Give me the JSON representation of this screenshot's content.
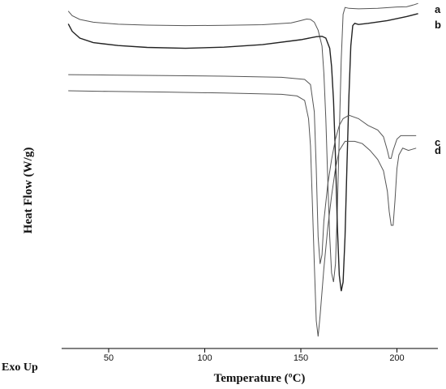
{
  "chart_data": {
    "type": "line",
    "xlabel": "Temperature (ºC)",
    "ylabel": "Heat Flow (W/g)",
    "corner_note": "Exo Up",
    "xlim": [
      27,
      212
    ],
    "x_ticks": [
      50,
      100,
      150,
      200
    ],
    "grid": false,
    "series": [
      {
        "name": "a",
        "color": "#555555",
        "points": [
          [
            29,
            -0.6
          ],
          [
            31,
            -2.6
          ],
          [
            35,
            -4.3
          ],
          [
            42,
            -5.5
          ],
          [
            55,
            -6.4
          ],
          [
            70,
            -6.8
          ],
          [
            90,
            -7.0
          ],
          [
            110,
            -6.9
          ],
          [
            130,
            -6.6
          ],
          [
            145,
            -5.8
          ],
          [
            150,
            -4.8
          ],
          [
            153,
            -4.1
          ],
          [
            155,
            -4.3
          ],
          [
            157,
            -5.5
          ],
          [
            159,
            -9
          ],
          [
            161,
            -16
          ],
          [
            162,
            -28
          ],
          [
            163,
            -48
          ],
          [
            164,
            -75
          ],
          [
            165,
            -100
          ],
          [
            166,
            -116
          ],
          [
            167,
            -120
          ],
          [
            168,
            -112
          ],
          [
            169,
            -88
          ],
          [
            170,
            -55
          ],
          [
            171,
            -22
          ],
          [
            172,
            -2
          ],
          [
            173,
            1
          ],
          [
            175,
            0.6
          ],
          [
            180,
            0.4
          ],
          [
            190,
            0.6
          ],
          [
            200,
            1.2
          ],
          [
            205,
            1.3
          ],
          [
            209,
            2.2
          ],
          [
            211,
            2.8
          ]
        ]
      },
      {
        "name": "b",
        "color": "#222222",
        "points": [
          [
            29,
            -6.2
          ],
          [
            31,
            -9.5
          ],
          [
            35,
            -12.5
          ],
          [
            42,
            -14.5
          ],
          [
            55,
            -15.8
          ],
          [
            70,
            -16.6
          ],
          [
            90,
            -17
          ],
          [
            110,
            -16.5
          ],
          [
            130,
            -15.4
          ],
          [
            150,
            -13.2
          ],
          [
            158,
            -11.9
          ],
          [
            161,
            -11.7
          ],
          [
            163,
            -12.5
          ],
          [
            165,
            -17
          ],
          [
            166,
            -25
          ],
          [
            167,
            -40
          ],
          [
            168,
            -65
          ],
          [
            169,
            -95
          ],
          [
            170,
            -117
          ],
          [
            171,
            -124
          ],
          [
            172,
            -120
          ],
          [
            173,
            -100
          ],
          [
            174,
            -68
          ],
          [
            175,
            -38
          ],
          [
            176,
            -16
          ],
          [
            177,
            -7
          ],
          [
            178,
            -6
          ],
          [
            180,
            -6.5
          ],
          [
            185,
            -6
          ],
          [
            195,
            -4.8
          ],
          [
            205,
            -3
          ],
          [
            211,
            -1.7
          ]
        ]
      },
      {
        "name": "c",
        "color": "#555555",
        "points": [
          [
            29,
            -28.6
          ],
          [
            50,
            -28.8
          ],
          [
            80,
            -29
          ],
          [
            110,
            -29.3
          ],
          [
            140,
            -29.8
          ],
          [
            152,
            -30.7
          ],
          [
            155,
            -33
          ],
          [
            157,
            -45
          ],
          [
            158,
            -70
          ],
          [
            159,
            -100
          ],
          [
            160,
            -112
          ],
          [
            161,
            -108
          ],
          [
            162,
            -93
          ],
          [
            164,
            -77
          ],
          [
            166,
            -66
          ],
          [
            168,
            -57
          ],
          [
            170,
            -51
          ],
          [
            172,
            -48
          ],
          [
            175,
            -46.5
          ],
          [
            180,
            -48
          ],
          [
            185,
            -51
          ],
          [
            190,
            -53
          ],
          [
            193,
            -56
          ],
          [
            195,
            -62
          ],
          [
            196,
            -65.5
          ],
          [
            197,
            -65.5
          ],
          [
            198,
            -62
          ],
          [
            200,
            -57
          ],
          [
            202,
            -55.5
          ],
          [
            206,
            -55.5
          ],
          [
            210,
            -55.5
          ]
        ]
      },
      {
        "name": "d",
        "color": "#555555",
        "points": [
          [
            29,
            -35.7
          ],
          [
            50,
            -36
          ],
          [
            80,
            -36.3
          ],
          [
            110,
            -36.7
          ],
          [
            140,
            -37.3
          ],
          [
            148,
            -38
          ],
          [
            152,
            -40
          ],
          [
            154,
            -48
          ],
          [
            155,
            -60
          ],
          [
            156,
            -85
          ],
          [
            157,
            -112
          ],
          [
            158,
            -137
          ],
          [
            159,
            -144
          ],
          [
            160,
            -135
          ],
          [
            162,
            -114
          ],
          [
            164,
            -96
          ],
          [
            166,
            -82
          ],
          [
            168,
            -70
          ],
          [
            170,
            -62
          ],
          [
            173,
            -58
          ],
          [
            178,
            -58
          ],
          [
            182,
            -59
          ],
          [
            186,
            -62
          ],
          [
            190,
            -66
          ],
          [
            193,
            -71
          ],
          [
            195,
            -80
          ],
          [
            196,
            -89
          ],
          [
            197,
            -95
          ],
          [
            198,
            -95
          ],
          [
            199,
            -84
          ],
          [
            200,
            -70
          ],
          [
            201,
            -64
          ],
          [
            203,
            -61
          ],
          [
            206,
            -62
          ],
          [
            208,
            -61.5
          ],
          [
            210,
            -61
          ]
        ]
      }
    ]
  }
}
